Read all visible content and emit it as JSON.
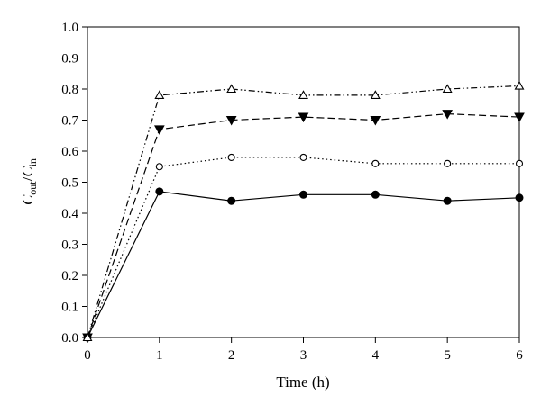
{
  "chart_data": {
    "type": "line",
    "xlabel": "Time (h)",
    "ylabel": {
      "main": "C",
      "sub1": "out",
      "sep": "/",
      "main2": "C",
      "sub2": "in"
    },
    "xlim": [
      0,
      6
    ],
    "ylim": [
      0.0,
      1.0
    ],
    "x_ticks": [
      "0",
      "1",
      "2",
      "3",
      "4",
      "5",
      "6"
    ],
    "y_ticks": [
      "0.0",
      "0.1",
      "0.2",
      "0.3",
      "0.4",
      "0.5",
      "0.6",
      "0.7",
      "0.8",
      "0.9",
      "1.0"
    ],
    "grid": false,
    "x": [
      0,
      1,
      2,
      3,
      4,
      5,
      6
    ],
    "series": [
      {
        "values": [
          0.0,
          0.47,
          0.44,
          0.46,
          0.46,
          0.44,
          0.45
        ],
        "marker": "filled-circle",
        "line_style": "solid"
      },
      {
        "values": [
          0.0,
          0.55,
          0.58,
          0.58,
          0.56,
          0.56,
          0.56
        ],
        "marker": "open-circle",
        "line_style": "dotted"
      },
      {
        "values": [
          0.0,
          0.67,
          0.7,
          0.71,
          0.7,
          0.72,
          0.71
        ],
        "marker": "filled-down-triangle",
        "line_style": "dashed"
      },
      {
        "values": [
          0.0,
          0.78,
          0.8,
          0.78,
          0.78,
          0.8,
          0.81
        ],
        "marker": "open-triangle",
        "line_style": "dash-dot-dot"
      }
    ]
  }
}
